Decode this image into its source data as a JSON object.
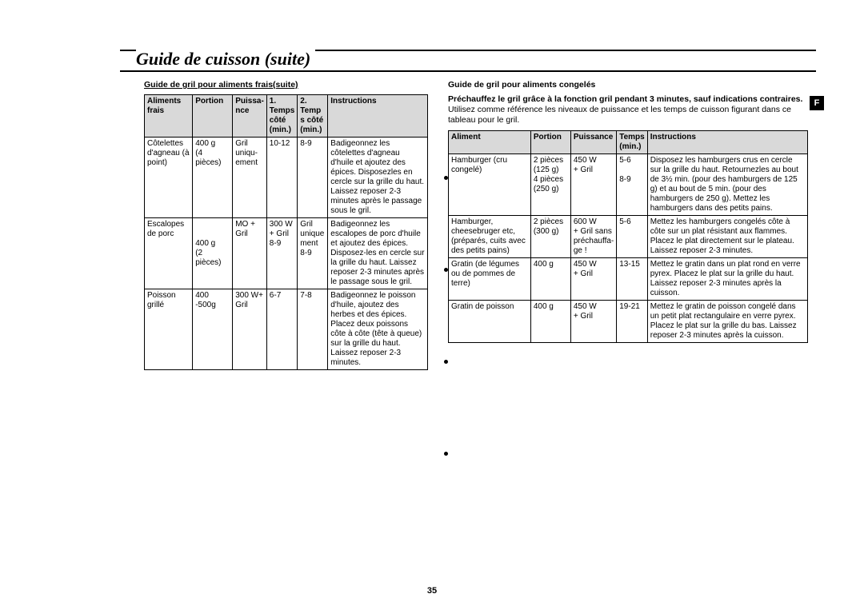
{
  "page_title": "Guide de cuisson (suite)",
  "page_number": "35",
  "side_tab": "F",
  "left": {
    "heading": "Guide de gril pour aliments frais(suite)",
    "headers": [
      "Aliments frais",
      "Portion",
      "Puissa-\nnce",
      "1. Temps côté (min.)",
      "2. Temp s côté (min.)",
      "Instructions"
    ],
    "rows": [
      {
        "aliment": "Côtelettes d'agneau (à point)",
        "portion": "400 g\n(4 pièces)",
        "puissance": "Gril uniqu-\nement",
        "t1": "10-12",
        "t2": "8-9",
        "instr": "Badigeonnez les côtelettes d'agneau d'huile et ajoutez des épices. Disposezles en cercle sur la grille du haut. Laissez reposer 2-3 minutes après le passage sous le gril."
      },
      {
        "aliment": "Escalopes de porc",
        "portion": "\n\n400 g\n(2 pièces)",
        "puissance": "MO + Gril",
        "t1": "300 W\n+ Gril\n8-9",
        "t2": "Gril unique ment\n8-9",
        "instr": "Badigeonnez les escalopes de porc d'huile et ajoutez des épices. Disposez-les en cercle sur la grille du haut. Laissez reposer 2-3 minutes après le passage sous le gril."
      },
      {
        "aliment": "Poisson grillé",
        "portion": "400 -500g",
        "puissance": "300 W+ Gril",
        "t1": "6-7",
        "t2": "7-8",
        "instr": "Badigeonnez le poisson d'huile, ajoutez des herbes et des épices. Placez deux poissons côte à côte (tête à queue) sur la grille du haut. Laissez reposer 2-3 minutes."
      }
    ]
  },
  "right": {
    "heading": "Guide de gril pour aliments congelés",
    "intro_bold": "Préchauffez le gril grâce à la fonction gril pendant 3 minutes, sauf indications contraires.",
    "intro_normal": "Utilisez comme référence les niveaux de puissance et les temps de cuisson figurant dans ce tableau pour le gril.",
    "headers": [
      "Aliment",
      "Portion",
      "Puissance",
      "Temps (min.)",
      "Instructions"
    ],
    "rows": [
      {
        "aliment": "Hamburger (cru congelé)",
        "portion": "2 pièces (125 g)\n4 pièces (250 g)",
        "puissance": "450 W\n+ Gril",
        "temps": "5-6\n\n8-9",
        "instr": "Disposez les hamburgers crus en cercle sur la grille du haut. Retournezles au bout de 3½ min. (pour des hamburgers de 125 g) et au bout de 5 min. (pour des hamburgers de 250 g). Mettez les hamburgers dans des petits pains."
      },
      {
        "aliment": "Hamburger, cheesebruger etc, (préparés, cuits avec des petits pains)",
        "portion": "2 pièces (300 g)",
        "puissance": "600 W\n+ Gril sans préchauffa-\nge !",
        "temps": "5-6",
        "instr": "Mettez les hamburgers congelés côte à côte sur un plat résistant aux flammes. Placez le plat directement sur le plateau. Laissez reposer 2-3 minutes."
      },
      {
        "aliment": "Gratin (de légumes ou de pommes de terre)",
        "portion": "400 g",
        "puissance": "450 W\n+ Gril",
        "temps": "13-15",
        "instr": "Mettez le gratin dans un plat rond en verre pyrex. Placez le plat sur la grille du haut. Laissez reposer 2-3 minutes après la cuisson."
      },
      {
        "aliment": "Gratin de poisson",
        "portion": "400 g",
        "puissance": "450 W\n+ Gril",
        "temps": "19-21",
        "instr": "Mettez le gratin de poisson congelé dans un petit plat rectangulaire en verre pyrex. Placez le plat sur la grille du bas. Laissez reposer 2-3 minutes après la cuisson."
      }
    ]
  }
}
